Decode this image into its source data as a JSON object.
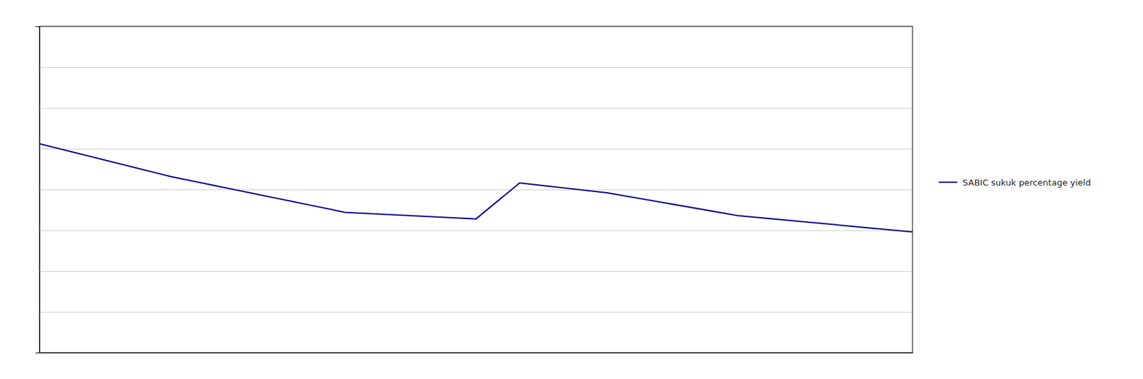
{
  "chart_data": {
    "type": "line",
    "x": [
      0,
      15,
      35,
      50,
      55,
      65,
      80,
      100
    ],
    "series": [
      {
        "name": "SABIC sukuk percentage yield",
        "color": "#00008B",
        "values": [
          4.7,
          4.2,
          3.65,
          3.55,
          4.1,
          3.95,
          3.6,
          3.35
        ]
      }
    ],
    "xlim": [
      0,
      100
    ],
    "ylim": [
      1.5,
      6.5
    ],
    "yticks": [
      1.5,
      2.125,
      2.75,
      3.375,
      4.0,
      4.625,
      5.25,
      5.875,
      6.5
    ],
    "grid": true,
    "legend": "right",
    "tick_labels": false
  }
}
